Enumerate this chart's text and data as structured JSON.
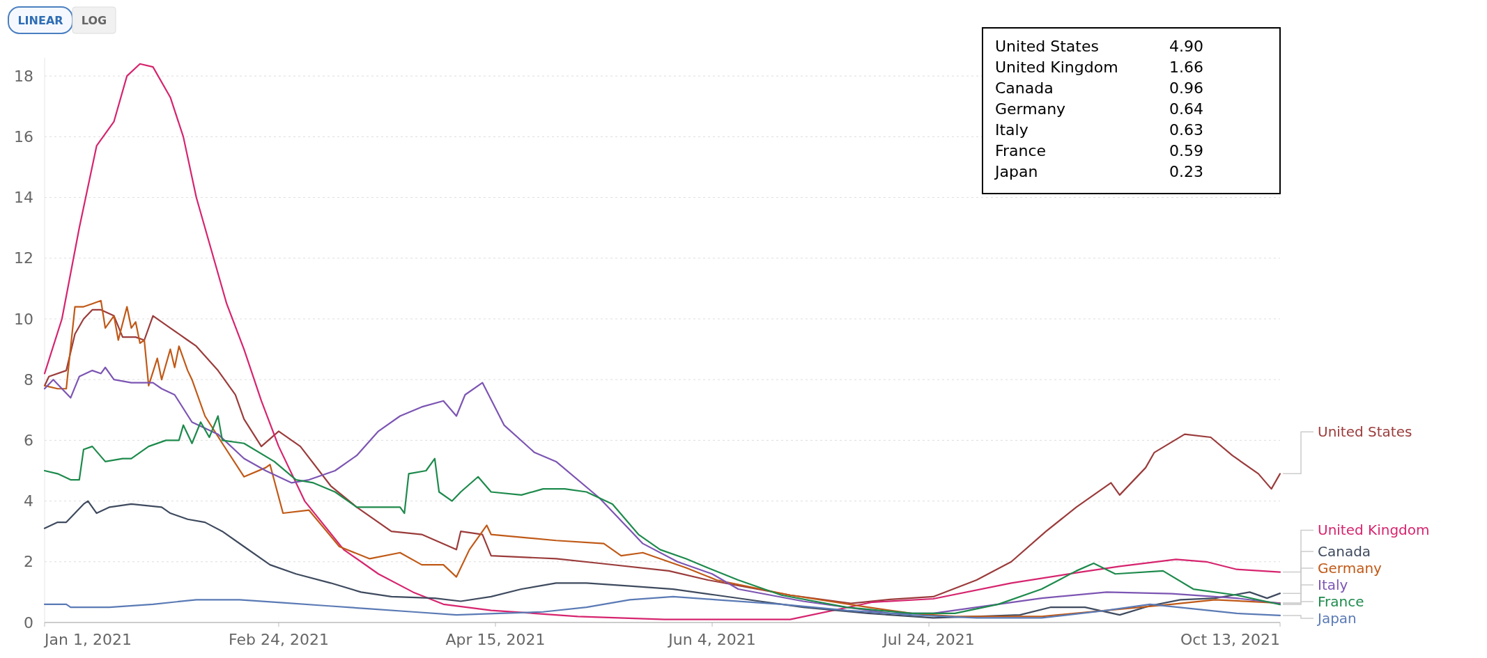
{
  "chart_data": {
    "type": "line",
    "legend": "right",
    "grid": "y",
    "line_style": "solid",
    "log": false,
    "xlim": [
      "2021-01-01",
      "2021-10-13"
    ],
    "xticks": [
      {
        "value": "2021-01-01",
        "label": "Jan 1, 2021"
      },
      {
        "value": "2021-02-24",
        "label": "Feb 24, 2021"
      },
      {
        "value": "2021-04-15",
        "label": "Apr 15, 2021"
      },
      {
        "value": "2021-06-04",
        "label": "Jun 4, 2021"
      },
      {
        "value": "2021-07-24",
        "label": "Jul 24, 2021"
      },
      {
        "value": "2021-10-13",
        "label": "Oct 13, 2021"
      }
    ],
    "ylim": [
      0,
      18.6
    ],
    "yticks": [
      0,
      2,
      4,
      6,
      8,
      10,
      12,
      14,
      16,
      18
    ],
    "annotations": [
      "LINEAR",
      "LOG",
      "United States 4.90",
      "United Kingdom 1.66",
      "Canada 0.96",
      "Germany 0.64",
      "Italy 0.63",
      "France 0.59",
      "Japan 0.23"
    ],
    "series": [
      {
        "name": "United States",
        "color": "#9b3b3b",
        "x": [
          "2021-01-01",
          "2021-01-02",
          "2021-01-06",
          "2021-01-08",
          "2021-01-10",
          "2021-01-12",
          "2021-01-14",
          "2021-01-17",
          "2021-01-19",
          "2021-01-22",
          "2021-01-24",
          "2021-01-26",
          "2021-01-30",
          "2021-02-03",
          "2021-02-05",
          "2021-02-10",
          "2021-02-14",
          "2021-02-16",
          "2021-02-20",
          "2021-02-24",
          "2021-03-01",
          "2021-03-08",
          "2021-03-14",
          "2021-03-22",
          "2021-03-29",
          "2021-04-06",
          "2021-04-07",
          "2021-04-12",
          "2021-04-14",
          "2021-04-29",
          "2021-05-09",
          "2021-05-25",
          "2021-06-03",
          "2021-06-22",
          "2021-07-06",
          "2021-07-15",
          "2021-07-25",
          "2021-08-04",
          "2021-08-12",
          "2021-08-20",
          "2021-08-27",
          "2021-09-04",
          "2021-09-06",
          "2021-09-12",
          "2021-09-14",
          "2021-09-21",
          "2021-09-27",
          "2021-10-02",
          "2021-10-08",
          "2021-10-11",
          "2021-10-13"
        ],
        "values": [
          7.8,
          8.1,
          8.3,
          9.5,
          10,
          10.3,
          10.3,
          10.1,
          9.4,
          9.4,
          9.3,
          10.1,
          9.7,
          9.3,
          9.1,
          8.3,
          7.5,
          6.7,
          5.8,
          6.3,
          5.8,
          4.5,
          3.8,
          3.0,
          2.9,
          2.4,
          3.0,
          2.9,
          2.2,
          2.1,
          1.95,
          1.7,
          1.4,
          0.9,
          0.63,
          0.76,
          0.85,
          1.4,
          2.0,
          3.0,
          3.8,
          4.6,
          4.2,
          5.1,
          5.6,
          6.2,
          6.1,
          5.5,
          4.9,
          4.4,
          4.9
        ]
      },
      {
        "name": "United Kingdom",
        "color": "#d6246e",
        "x": [
          "2021-01-01",
          "2021-01-05",
          "2021-01-09",
          "2021-01-13",
          "2021-01-17",
          "2021-01-20",
          "2021-01-23",
          "2021-01-26",
          "2021-01-30",
          "2021-02-02",
          "2021-02-05",
          "2021-02-08",
          "2021-02-12",
          "2021-02-16",
          "2021-02-20",
          "2021-02-24",
          "2021-03-02",
          "2021-03-11",
          "2021-03-19",
          "2021-03-27",
          "2021-04-03",
          "2021-04-14",
          "2021-05-04",
          "2021-05-24",
          "2021-06-22",
          "2021-07-11",
          "2021-07-25",
          "2021-08-12",
          "2021-08-28",
          "2021-09-06",
          "2021-09-19",
          "2021-09-26",
          "2021-10-03",
          "2021-10-13"
        ],
        "values": [
          8.2,
          10,
          13,
          15.7,
          16.5,
          18,
          18.4,
          18.3,
          17.3,
          16,
          14,
          12.5,
          10.5,
          9,
          7.3,
          5.8,
          4,
          2.4,
          1.6,
          1.0,
          0.6,
          0.4,
          0.2,
          0.1,
          0.1,
          0.67,
          0.78,
          1.3,
          1.66,
          1.85,
          2.08,
          2.0,
          1.75,
          1.66
        ]
      },
      {
        "name": "Canada",
        "color": "#3e4a5e",
        "x": [
          "2021-01-01",
          "2021-01-04",
          "2021-01-06",
          "2021-01-10",
          "2021-01-11",
          "2021-01-13",
          "2021-01-16",
          "2021-01-21",
          "2021-01-28",
          "2021-01-30",
          "2021-02-03",
          "2021-02-07",
          "2021-02-11",
          "2021-02-16",
          "2021-02-22",
          "2021-02-28",
          "2021-03-08",
          "2021-03-15",
          "2021-03-22",
          "2021-04-01",
          "2021-04-07",
          "2021-04-14",
          "2021-04-21",
          "2021-04-29",
          "2021-05-06",
          "2021-05-16",
          "2021-05-26",
          "2021-06-05",
          "2021-06-15",
          "2021-06-25",
          "2021-07-10",
          "2021-07-25",
          "2021-08-04",
          "2021-08-14",
          "2021-08-21",
          "2021-08-29",
          "2021-09-06",
          "2021-09-13",
          "2021-09-20",
          "2021-09-28",
          "2021-10-06",
          "2021-10-10",
          "2021-10-13"
        ],
        "values": [
          3.1,
          3.3,
          3.3,
          3.9,
          4.0,
          3.6,
          3.8,
          3.9,
          3.8,
          3.6,
          3.4,
          3.3,
          3.0,
          2.5,
          1.9,
          1.6,
          1.3,
          1.0,
          0.85,
          0.8,
          0.7,
          0.85,
          1.1,
          1.3,
          1.3,
          1.2,
          1.1,
          0.9,
          0.7,
          0.5,
          0.3,
          0.15,
          0.2,
          0.25,
          0.5,
          0.5,
          0.25,
          0.55,
          0.75,
          0.8,
          1.0,
          0.8,
          0.96
        ]
      },
      {
        "name": "Germany",
        "color": "#c05917",
        "x": [
          "2021-01-01",
          "2021-01-04",
          "2021-01-06",
          "2021-01-08",
          "2021-01-10",
          "2021-01-12",
          "2021-01-14",
          "2021-01-15",
          "2021-01-17",
          "2021-01-18",
          "2021-01-20",
          "2021-01-21",
          "2021-01-22",
          "2021-01-23",
          "2021-01-24",
          "2021-01-25",
          "2021-01-27",
          "2021-01-28",
          "2021-01-30",
          "2021-01-31",
          "2021-02-01",
          "2021-02-03",
          "2021-02-04",
          "2021-02-07",
          "2021-02-11",
          "2021-02-16",
          "2021-02-21",
          "2021-02-22",
          "2021-02-25",
          "2021-03-03",
          "2021-03-10",
          "2021-03-17",
          "2021-03-24",
          "2021-03-29",
          "2021-04-03",
          "2021-04-06",
          "2021-04-09",
          "2021-04-13",
          "2021-04-14",
          "2021-04-29",
          "2021-05-10",
          "2021-05-14",
          "2021-05-19",
          "2021-05-29",
          "2021-06-05",
          "2021-06-22",
          "2021-07-10",
          "2021-07-20",
          "2021-07-30",
          "2021-08-19",
          "2021-09-03",
          "2021-09-18",
          "2021-09-28",
          "2021-10-13"
        ],
        "values": [
          7.8,
          7.7,
          7.7,
          10.4,
          10.4,
          10.5,
          10.6,
          9.7,
          10.1,
          9.3,
          10.4,
          9.7,
          9.9,
          9.2,
          9.3,
          7.8,
          8.7,
          8.0,
          9.0,
          8.4,
          9.1,
          8.3,
          8.0,
          6.8,
          5.9,
          4.8,
          5.1,
          5.2,
          3.6,
          3.7,
          2.5,
          2.1,
          2.3,
          1.9,
          1.9,
          1.5,
          2.4,
          3.2,
          2.9,
          2.7,
          2.6,
          2.2,
          2.3,
          1.8,
          1.4,
          0.9,
          0.5,
          0.3,
          0.2,
          0.2,
          0.4,
          0.6,
          0.75,
          0.64
        ]
      },
      {
        "name": "Italy",
        "color": "#7c55b3",
        "x": [
          "2021-01-01",
          "2021-01-03",
          "2021-01-07",
          "2021-01-09",
          "2021-01-12",
          "2021-01-14",
          "2021-01-15",
          "2021-01-17",
          "2021-01-21",
          "2021-01-26",
          "2021-01-28",
          "2021-01-31",
          "2021-02-04",
          "2021-02-10",
          "2021-02-16",
          "2021-02-21",
          "2021-02-27",
          "2021-03-03",
          "2021-03-09",
          "2021-03-14",
          "2021-03-19",
          "2021-03-24",
          "2021-03-29",
          "2021-04-03",
          "2021-04-06",
          "2021-04-08",
          "2021-04-12",
          "2021-04-17",
          "2021-04-24",
          "2021-04-29",
          "2021-05-09",
          "2021-05-19",
          "2021-05-27",
          "2021-06-04",
          "2021-06-10",
          "2021-06-25",
          "2021-07-15",
          "2021-07-25",
          "2021-08-04",
          "2021-08-19",
          "2021-09-03",
          "2021-09-18",
          "2021-10-03",
          "2021-10-13"
        ],
        "values": [
          7.7,
          8.0,
          7.4,
          8.1,
          8.3,
          8.2,
          8.4,
          8.0,
          7.9,
          7.9,
          7.7,
          7.5,
          6.6,
          6.2,
          5.4,
          5.0,
          4.6,
          4.7,
          5.0,
          5.5,
          6.3,
          6.8,
          7.1,
          7.3,
          6.8,
          7.5,
          7.9,
          6.5,
          5.6,
          5.3,
          4.1,
          2.6,
          2.0,
          1.6,
          1.1,
          0.7,
          0.3,
          0.3,
          0.5,
          0.8,
          1.0,
          0.95,
          0.8,
          0.63
        ]
      },
      {
        "name": "France",
        "color": "#1d8a4c",
        "x": [
          "2021-01-01",
          "2021-01-04",
          "2021-01-07",
          "2021-01-09",
          "2021-01-10",
          "2021-01-12",
          "2021-01-15",
          "2021-01-19",
          "2021-01-21",
          "2021-01-25",
          "2021-01-29",
          "2021-02-01",
          "2021-02-02",
          "2021-02-04",
          "2021-02-06",
          "2021-02-08",
          "2021-02-10",
          "2021-02-11",
          "2021-02-16",
          "2021-02-23",
          "2021-02-28",
          "2021-03-04",
          "2021-03-09",
          "2021-03-14",
          "2021-03-19",
          "2021-03-24",
          "2021-03-25",
          "2021-03-26",
          "2021-03-30",
          "2021-04-01",
          "2021-04-02",
          "2021-04-05",
          "2021-04-07",
          "2021-04-11",
          "2021-04-14",
          "2021-04-21",
          "2021-04-26",
          "2021-05-01",
          "2021-05-06",
          "2021-05-12",
          "2021-05-18",
          "2021-05-23",
          "2021-05-29",
          "2021-06-03",
          "2021-06-10",
          "2021-06-20",
          "2021-07-05",
          "2021-07-20",
          "2021-07-30",
          "2021-08-09",
          "2021-08-19",
          "2021-08-27",
          "2021-08-31",
          "2021-09-05",
          "2021-09-16",
          "2021-09-23",
          "2021-10-03",
          "2021-10-13"
        ],
        "values": [
          5.0,
          4.9,
          4.7,
          4.7,
          5.7,
          5.8,
          5.3,
          5.4,
          5.4,
          5.8,
          6.0,
          6.0,
          6.5,
          5.9,
          6.6,
          6.1,
          6.8,
          6.0,
          5.9,
          5.3,
          4.7,
          4.6,
          4.3,
          3.8,
          3.8,
          3.8,
          3.6,
          4.9,
          5.0,
          5.4,
          4.3,
          4.0,
          4.3,
          4.8,
          4.3,
          4.2,
          4.4,
          4.4,
          4.3,
          3.9,
          2.9,
          2.4,
          2.1,
          1.8,
          1.4,
          0.9,
          0.5,
          0.3,
          0.3,
          0.6,
          1.1,
          1.7,
          1.95,
          1.6,
          1.7,
          1.1,
          0.9,
          0.59
        ]
      },
      {
        "name": "Japan",
        "color": "#5a7ab5",
        "x": [
          "2021-01-01",
          "2021-01-06",
          "2021-01-07",
          "2021-01-16",
          "2021-01-26",
          "2021-02-05",
          "2021-02-15",
          "2021-02-25",
          "2021-03-07",
          "2021-03-17",
          "2021-03-27",
          "2021-04-06",
          "2021-04-16",
          "2021-04-26",
          "2021-05-06",
          "2021-05-16",
          "2021-05-26",
          "2021-06-05",
          "2021-06-20",
          "2021-07-05",
          "2021-07-20",
          "2021-08-04",
          "2021-08-19",
          "2021-09-03",
          "2021-09-13",
          "2021-09-23",
          "2021-10-03",
          "2021-10-13"
        ],
        "values": [
          0.6,
          0.6,
          0.5,
          0.5,
          0.6,
          0.75,
          0.75,
          0.65,
          0.55,
          0.45,
          0.35,
          0.25,
          0.3,
          0.35,
          0.5,
          0.75,
          0.85,
          0.75,
          0.6,
          0.4,
          0.25,
          0.15,
          0.15,
          0.4,
          0.6,
          0.45,
          0.3,
          0.23
        ]
      }
    ]
  }
}
